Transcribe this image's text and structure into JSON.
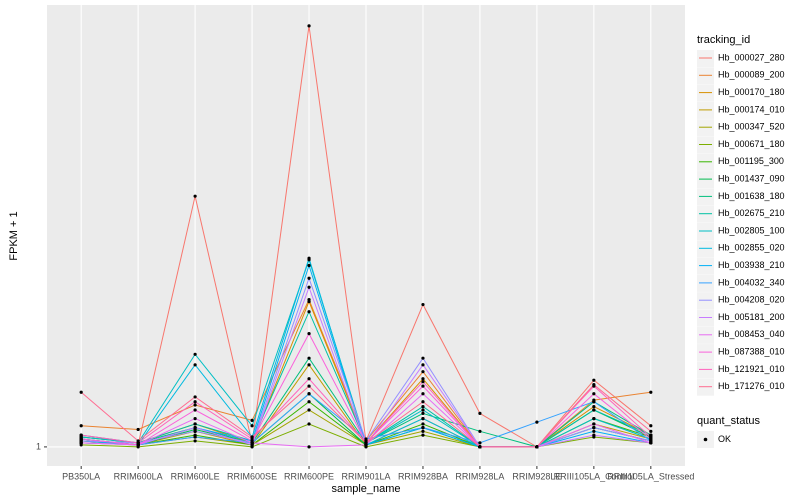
{
  "chart_data": {
    "type": "line",
    "x_label": "sample_name",
    "y_label": "FPKM + 1",
    "log_scale": true,
    "grid": true,
    "legend_title": "tracking_id",
    "point_legend_title": "quant_status",
    "point_legend_label": "OK",
    "point_color": "#000000",
    "ylim": [
      0.91,
      8.87
    ],
    "yticks": [
      1
    ],
    "categories": [
      "PB350LA",
      "RRIM600LA",
      "RRIM600LE",
      "RRIM600SE",
      "RRIM600PE",
      "RRIM901LA",
      "RRIM928BA",
      "RRIM928LA",
      "RRIM928LE",
      "RRIII105LA_Control",
      "RRIII105LA_Stressed"
    ],
    "series": [
      {
        "name": "Hb_000027_280",
        "color": "#F8766D",
        "values": [
          1.03,
          1.01,
          3.45,
          1.02,
          8,
          1.03,
          2.02,
          1.18,
          1,
          1.39,
          1.11
        ]
      },
      {
        "name": "Hb_000089_200",
        "color": "#EA8331",
        "values": [
          1.11,
          1.09,
          1.23,
          1.14,
          2.07,
          1.03,
          1.45,
          1,
          1,
          1.26,
          1.31
        ]
      },
      {
        "name": "Hb_000170_180",
        "color": "#D89000",
        "values": [
          1.05,
          1.02,
          1.12,
          1.02,
          2.05,
          1.02,
          1.4,
          1,
          1,
          1.22,
          1.06
        ]
      },
      {
        "name": "Hb_000174_010",
        "color": "#C09B00",
        "values": [
          1.04,
          1.01,
          1.08,
          1.01,
          1.5,
          1.01,
          1.15,
          1,
          1,
          1.12,
          1.04
        ]
      },
      {
        "name": "Hb_000347_520",
        "color": "#A3A500",
        "values": [
          1.02,
          1.01,
          1.05,
          1.01,
          1.2,
          1.01,
          1.08,
          1,
          1,
          1.1,
          1.03
        ]
      },
      {
        "name": "Hb_000671_180",
        "color": "#7CAE00",
        "values": [
          1.01,
          1,
          1.03,
          1,
          1.12,
          1,
          1.06,
          1,
          1,
          1.05,
          1.02
        ]
      },
      {
        "name": "Hb_001195_300",
        "color": "#39B600",
        "values": [
          1.03,
          1.01,
          1.06,
          1.01,
          1.25,
          1.01,
          1.12,
          1,
          1,
          1.15,
          1.05
        ]
      },
      {
        "name": "Hb_001437_090",
        "color": "#00BB4E",
        "values": [
          1.04,
          1.01,
          1.09,
          1.02,
          1.3,
          1.01,
          1.1,
          1,
          1,
          1.2,
          1.05
        ]
      },
      {
        "name": "Hb_001638_180",
        "color": "#00BF7D",
        "values": [
          1.05,
          1.02,
          1.1,
          1.02,
          1.55,
          1.02,
          1.18,
          1.08,
          1,
          1.25,
          1.06
        ]
      },
      {
        "name": "Hb_002675_210",
        "color": "#00C1A3",
        "values": [
          1.06,
          1.02,
          1.12,
          1.03,
          1.95,
          1.02,
          1.22,
          1,
          1,
          1.2,
          1.06
        ]
      },
      {
        "name": "Hb_002805_100",
        "color": "#00BFC4",
        "values": [
          1.05,
          1.02,
          1.58,
          1.11,
          2.52,
          1.02,
          1.2,
          1,
          1,
          1.15,
          1.04
        ]
      },
      {
        "name": "Hb_002855_020",
        "color": "#00BAE0",
        "values": [
          1.04,
          1.01,
          1.5,
          1.05,
          2.54,
          1.01,
          1.15,
          1,
          1,
          1.1,
          1.03
        ]
      },
      {
        "name": "Hb_003938_210",
        "color": "#00B0F6",
        "values": [
          1.03,
          1.01,
          1.1,
          1.03,
          2.45,
          1.01,
          1.1,
          1,
          1,
          1.08,
          1.02
        ]
      },
      {
        "name": "Hb_004032_340",
        "color": "#35A2FF",
        "values": [
          1.02,
          1.01,
          1.05,
          1.02,
          1.3,
          1.04,
          1.1,
          1.02,
          1.13,
          1.25,
          1.03
        ]
      },
      {
        "name": "Hb_004208_020",
        "color": "#9590FF",
        "values": [
          1.03,
          1.02,
          1.08,
          1.02,
          2.3,
          1.03,
          1.55,
          1,
          1,
          1.1,
          1.03
        ]
      },
      {
        "name": "Hb_005181_200",
        "color": "#C77CFF",
        "values": [
          1.02,
          1.01,
          1.1,
          1.01,
          2.2,
          1.01,
          1.5,
          1,
          1,
          1.06,
          1.02
        ]
      },
      {
        "name": "Hb_008453_040",
        "color": "#E76BF3",
        "values": [
          1.02,
          1.01,
          1.15,
          1.02,
          1.0,
          1.01,
          1.3,
          1,
          1,
          1.12,
          1.02
        ]
      },
      {
        "name": "Hb_087388_010",
        "color": "#FA62DB",
        "values": [
          1.04,
          1.01,
          1.2,
          1.03,
          1.75,
          1.02,
          1.35,
          1,
          1,
          1.3,
          1.04
        ]
      },
      {
        "name": "Hb_121921_010",
        "color": "#FF62BC",
        "values": [
          1.06,
          1.02,
          1.25,
          1.04,
          1.4,
          1.02,
          1.38,
          1,
          1,
          1.35,
          1.05
        ]
      },
      {
        "name": "Hb_171276_010",
        "color": "#FF6C91",
        "values": [
          1.31,
          1.03,
          1.28,
          1.05,
          1.35,
          1.02,
          1.25,
          1,
          1,
          1.36,
          1.08
        ]
      }
    ]
  }
}
